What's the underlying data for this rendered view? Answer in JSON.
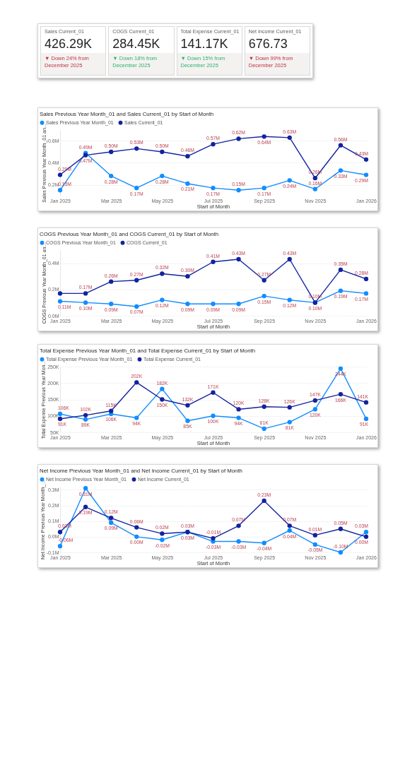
{
  "chart_data": [
    {
      "type": "other",
      "title": "Sales Current_01",
      "annotations": [
        "426.29K",
        "▼ Down 24% from December 2025"
      ],
      "color": "#c4313e"
    },
    {
      "type": "other",
      "title": "COGS Current_01",
      "annotations": [
        "284.45K",
        "▼ Down 18% from December 2025"
      ],
      "color": "#2fb36a"
    },
    {
      "type": "other",
      "title": "Total Expense Current_01",
      "annotations": [
        "141.17K",
        "▼ Down 15% from December 2025"
      ],
      "color": "#2fb36a"
    },
    {
      "type": "other",
      "title": "Net Income Current_01",
      "annotations": [
        "676.73",
        "▼ Down 99% from December 2025"
      ],
      "color": "#c4313e"
    },
    {
      "type": "line",
      "title": "Sales Previous Year Month_01 and Sales Current_01 by Start of Month",
      "xlabel": "Start of Month",
      "ylabel": "Sales Previous Year Month_01 an...",
      "legend": "top left",
      "marker": "circle",
      "grid": "y",
      "categories": [
        "Jan 2025",
        null,
        "Mar 2025",
        null,
        "May 2025",
        null,
        "Jul 2025",
        null,
        "Sep 2025",
        null,
        "Nov 2025",
        null,
        "Jan 2026"
      ],
      "ylim": [
        0.1,
        0.7
      ],
      "yticks": [
        {
          "value": 0.2,
          "label": "0.2M"
        },
        {
          "value": 0.4,
          "label": "0.4M"
        },
        {
          "value": 0.6,
          "label": "0.6M"
        }
      ],
      "series": [
        {
          "name": "Sales Previous Year Month_01",
          "color": "#118dff",
          "values": [
            0.15,
            0.49,
            0.28,
            0.17,
            0.28,
            0.21,
            0.17,
            0.15,
            0.17,
            0.24,
            0.16,
            0.33,
            0.29
          ],
          "value_labels": [
            "0.15M",
            "0.49M",
            "0.28M",
            "0.17M",
            "0.28M",
            "0.21M",
            "0.17M",
            "0.15M",
            "0.17M",
            "0.24M",
            "0.16M",
            "0.33M",
            "0.29M"
          ]
        },
        {
          "name": "Sales Current_01",
          "color": "#12239e",
          "values": [
            0.29,
            0.47,
            0.5,
            0.53,
            0.5,
            0.46,
            0.57,
            0.62,
            0.64,
            0.63,
            0.26,
            0.56,
            0.43
          ],
          "value_labels": [
            "0.29M",
            "0.47M",
            "0.50M",
            "0.53M",
            "0.50M",
            "0.46M",
            "0.57M",
            "0.62M",
            "0.64M",
            "0.63M",
            "0.26M",
            "0.56M",
            "0.43M"
          ]
        }
      ]
    },
    {
      "type": "line",
      "title": "COGS Previous Year Month_01 and COGS Current_01 by Start of Month",
      "xlabel": "Start of Month",
      "ylabel": "COGS Previous Year Month_01 an...",
      "legend": "top left",
      "marker": "circle",
      "grid": "y",
      "categories": [
        "Jan 2025",
        null,
        "Mar 2025",
        null,
        "May 2025",
        null,
        "Jul 2025",
        null,
        "Sep 2025",
        null,
        "Nov 2025",
        null,
        "Jan 2026"
      ],
      "ylim": [
        0,
        0.5
      ],
      "yticks": [
        {
          "value": 0,
          "label": "0.0M"
        },
        {
          "value": 0.2,
          "label": "0.2M"
        },
        {
          "value": 0.4,
          "label": "0.4M"
        }
      ],
      "series": [
        {
          "name": "COGS Previous Year Month_01",
          "color": "#118dff",
          "values": [
            0.11,
            0.1,
            0.09,
            0.07,
            0.12,
            0.09,
            0.09,
            0.09,
            0.15,
            0.12,
            0.1,
            0.19,
            0.17
          ],
          "value_labels": [
            "0.11M",
            "0.10M",
            "0.09M",
            "0.07M",
            "0.12M",
            "0.09M",
            "0.09M",
            "0.09M",
            "0.15M",
            "0.12M",
            "0.10M",
            "0.19M",
            "0.17M"
          ]
        },
        {
          "name": "COGS Current_01",
          "color": "#12239e",
          "values": [
            0.17,
            0.17,
            0.26,
            0.27,
            0.32,
            0.3,
            0.41,
            0.43,
            0.27,
            0.43,
            0.1,
            0.35,
            0.28
          ],
          "value_labels": [
            null,
            "0.17M",
            "0.26M",
            "0.27M",
            "0.32M",
            "0.30M",
            "0.41M",
            "0.43M",
            "0.27M",
            "0.43M",
            "0.10M",
            "0.35M",
            "0.28M"
          ]
        }
      ]
    },
    {
      "type": "line",
      "title": "Total Expense Previous Year Month_01 and Total Expense Current_01 by Start of Month",
      "xlabel": "Start of Month",
      "ylabel": "Total Expense Previous Year Mon...",
      "legend": "top left",
      "marker": "circle",
      "grid": "y",
      "categories": [
        "Jan 2025",
        null,
        "Mar 2025",
        null,
        "May 2025",
        null,
        "Jul 2025",
        null,
        "Sep 2025",
        null,
        "Nov 2025",
        null,
        "Jan 2026"
      ],
      "ylim": [
        50,
        250
      ],
      "yticks": [
        {
          "value": 50,
          "label": "50K"
        },
        {
          "value": 100,
          "label": "100K"
        },
        {
          "value": 150,
          "label": "150K"
        },
        {
          "value": 200,
          "label": "200K"
        },
        {
          "value": 250,
          "label": "250K"
        }
      ],
      "series": [
        {
          "name": "Total Expense Previous Year Month_01",
          "color": "#118dff",
          "values": [
            106,
            89,
            106,
            94,
            182,
            85,
            100,
            94,
            61,
            81,
            120,
            244,
            91
          ],
          "value_labels": [
            "106K",
            "89K",
            "106K",
            "94K",
            "182K",
            "85K",
            "100K",
            "94K",
            "61K",
            "81K",
            "120K",
            "244K",
            "91K"
          ]
        },
        {
          "name": "Total Expense Current_01",
          "color": "#12239e",
          "values": [
            91,
            102,
            115,
            202,
            150,
            132,
            171,
            120,
            128,
            126,
            147,
            166,
            141
          ],
          "value_labels": [
            "91K",
            "102K",
            "115K",
            "202K",
            "150K",
            "132K",
            "171K",
            "120K",
            "128K",
            "126K",
            "147K",
            "166K",
            "141K"
          ]
        }
      ]
    },
    {
      "type": "line",
      "title": "Net Income Previous Year Month_01 and Net Income Current_01 by Start of Month",
      "xlabel": "Start of Month",
      "ylabel": "Net Income Previous Year Month_...",
      "legend": "top left",
      "marker": "circle",
      "grid": "y",
      "categories": [
        "Jan 2025",
        null,
        "Mar 2025",
        null,
        "May 2025",
        null,
        "Jul 2025",
        null,
        "Sep 2025",
        null,
        "Nov 2025",
        null,
        "Jan 2026"
      ],
      "ylim": [
        -0.1,
        0.32
      ],
      "yticks": [
        {
          "value": -0.1,
          "label": "-0.1M"
        },
        {
          "value": 0,
          "label": "0.0M"
        },
        {
          "value": 0.1,
          "label": "0.1M"
        },
        {
          "value": 0.2,
          "label": "0.2M"
        },
        {
          "value": 0.3,
          "label": "0.3M"
        }
      ],
      "series": [
        {
          "name": "Net Income Previous Year Month_01",
          "color": "#118dff",
          "values": [
            -0.06,
            0.31,
            0.09,
            0.0,
            -0.02,
            0.03,
            -0.03,
            -0.03,
            -0.04,
            0.04,
            -0.05,
            -0.1,
            0.03
          ],
          "value_labels": [
            "-0.06M",
            "0.31M",
            "0.09M",
            "0.00M",
            "-0.02M",
            "0.03M",
            "-0.03M",
            "-0.03M",
            "-0.04M",
            "0.04M",
            "-0.05M",
            "-0.10M",
            "0.03M"
          ]
        },
        {
          "name": "Net Income Current_01",
          "color": "#12239e",
          "values": [
            0.03,
            0.19,
            0.12,
            0.06,
            0.02,
            0.03,
            -0.01,
            0.07,
            0.23,
            0.07,
            0.01,
            0.05,
            0.0
          ],
          "value_labels": [
            "0.03M",
            "0.19M",
            "0.12M",
            "0.06M",
            "0.02M",
            "0.03M",
            "-0.01M",
            "0.07M",
            "0.23M",
            "0.07M",
            "0.01M",
            "0.05M",
            "0.00M"
          ]
        }
      ]
    }
  ]
}
